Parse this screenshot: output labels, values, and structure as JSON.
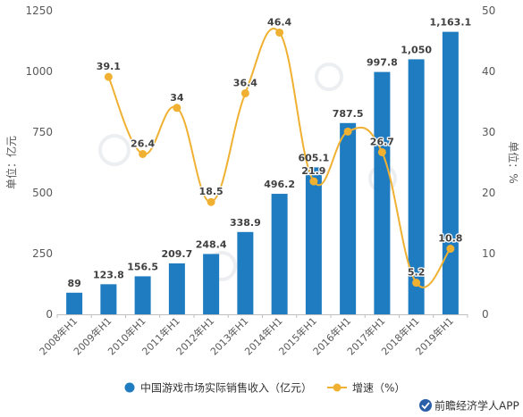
{
  "chart_data": {
    "type": "bar",
    "categories": [
      "2008年H1",
      "2009年H1",
      "2010年H1",
      "2011年H1",
      "2012年H1",
      "2013年H1",
      "2014年H1",
      "2015年H1",
      "2016年H1",
      "2017年H1",
      "2018年H1",
      "2019年H1"
    ],
    "series": [
      {
        "name": "中国游戏市场实际销售收入（亿元）",
        "type": "bar",
        "axis": "left",
        "color": "#1f7cc1",
        "values": [
          89,
          123.8,
          156.5,
          209.7,
          248.4,
          338.9,
          496.2,
          605.1,
          787.5,
          997.8,
          1050,
          1163.1
        ],
        "labels": [
          "89",
          "123.8",
          "156.5",
          "209.7",
          "248.4",
          "338.9",
          "496.2",
          "605.1",
          "787.5",
          "997.8",
          "1,050",
          "1,163.1"
        ]
      },
      {
        "name": "增速（%）",
        "type": "line",
        "axis": "right",
        "color": "#f0b132",
        "x": [
          "2009年H1",
          "2010年H1",
          "2011年H1",
          "2012年H1",
          "2013年H1",
          "2014年H1",
          "2015年H1",
          "2016年H1",
          "2017年H1",
          "2018年H1",
          "2019年H1"
        ],
        "values": [
          39.1,
          26.4,
          34,
          18.5,
          36.4,
          46.4,
          21.9,
          30.1,
          26.7,
          5.2,
          10.8
        ],
        "labels": [
          "39.1",
          "26.4",
          "34",
          "18.5",
          "36.4",
          "46.4",
          "21.9",
          "",
          "26.7",
          "5.2",
          "10.8"
        ]
      }
    ],
    "y_left": {
      "label": "单位：亿元",
      "ylim": [
        0,
        1250
      ],
      "ticks": [
        "0",
        "250",
        "500",
        "750",
        "1000",
        "1250"
      ]
    },
    "y_right": {
      "label": "单位：%",
      "ylim": [
        0,
        50
      ],
      "ticks": [
        "0",
        "10",
        "20",
        "30",
        "40",
        "50"
      ]
    },
    "grid": false,
    "legend_position": "bottom"
  },
  "legend": {
    "bar_label": "中国游戏市场实际销售收入（亿元）",
    "line_label": "增速（%）"
  },
  "footer": {
    "brand": "前瞻经济学人APP"
  }
}
